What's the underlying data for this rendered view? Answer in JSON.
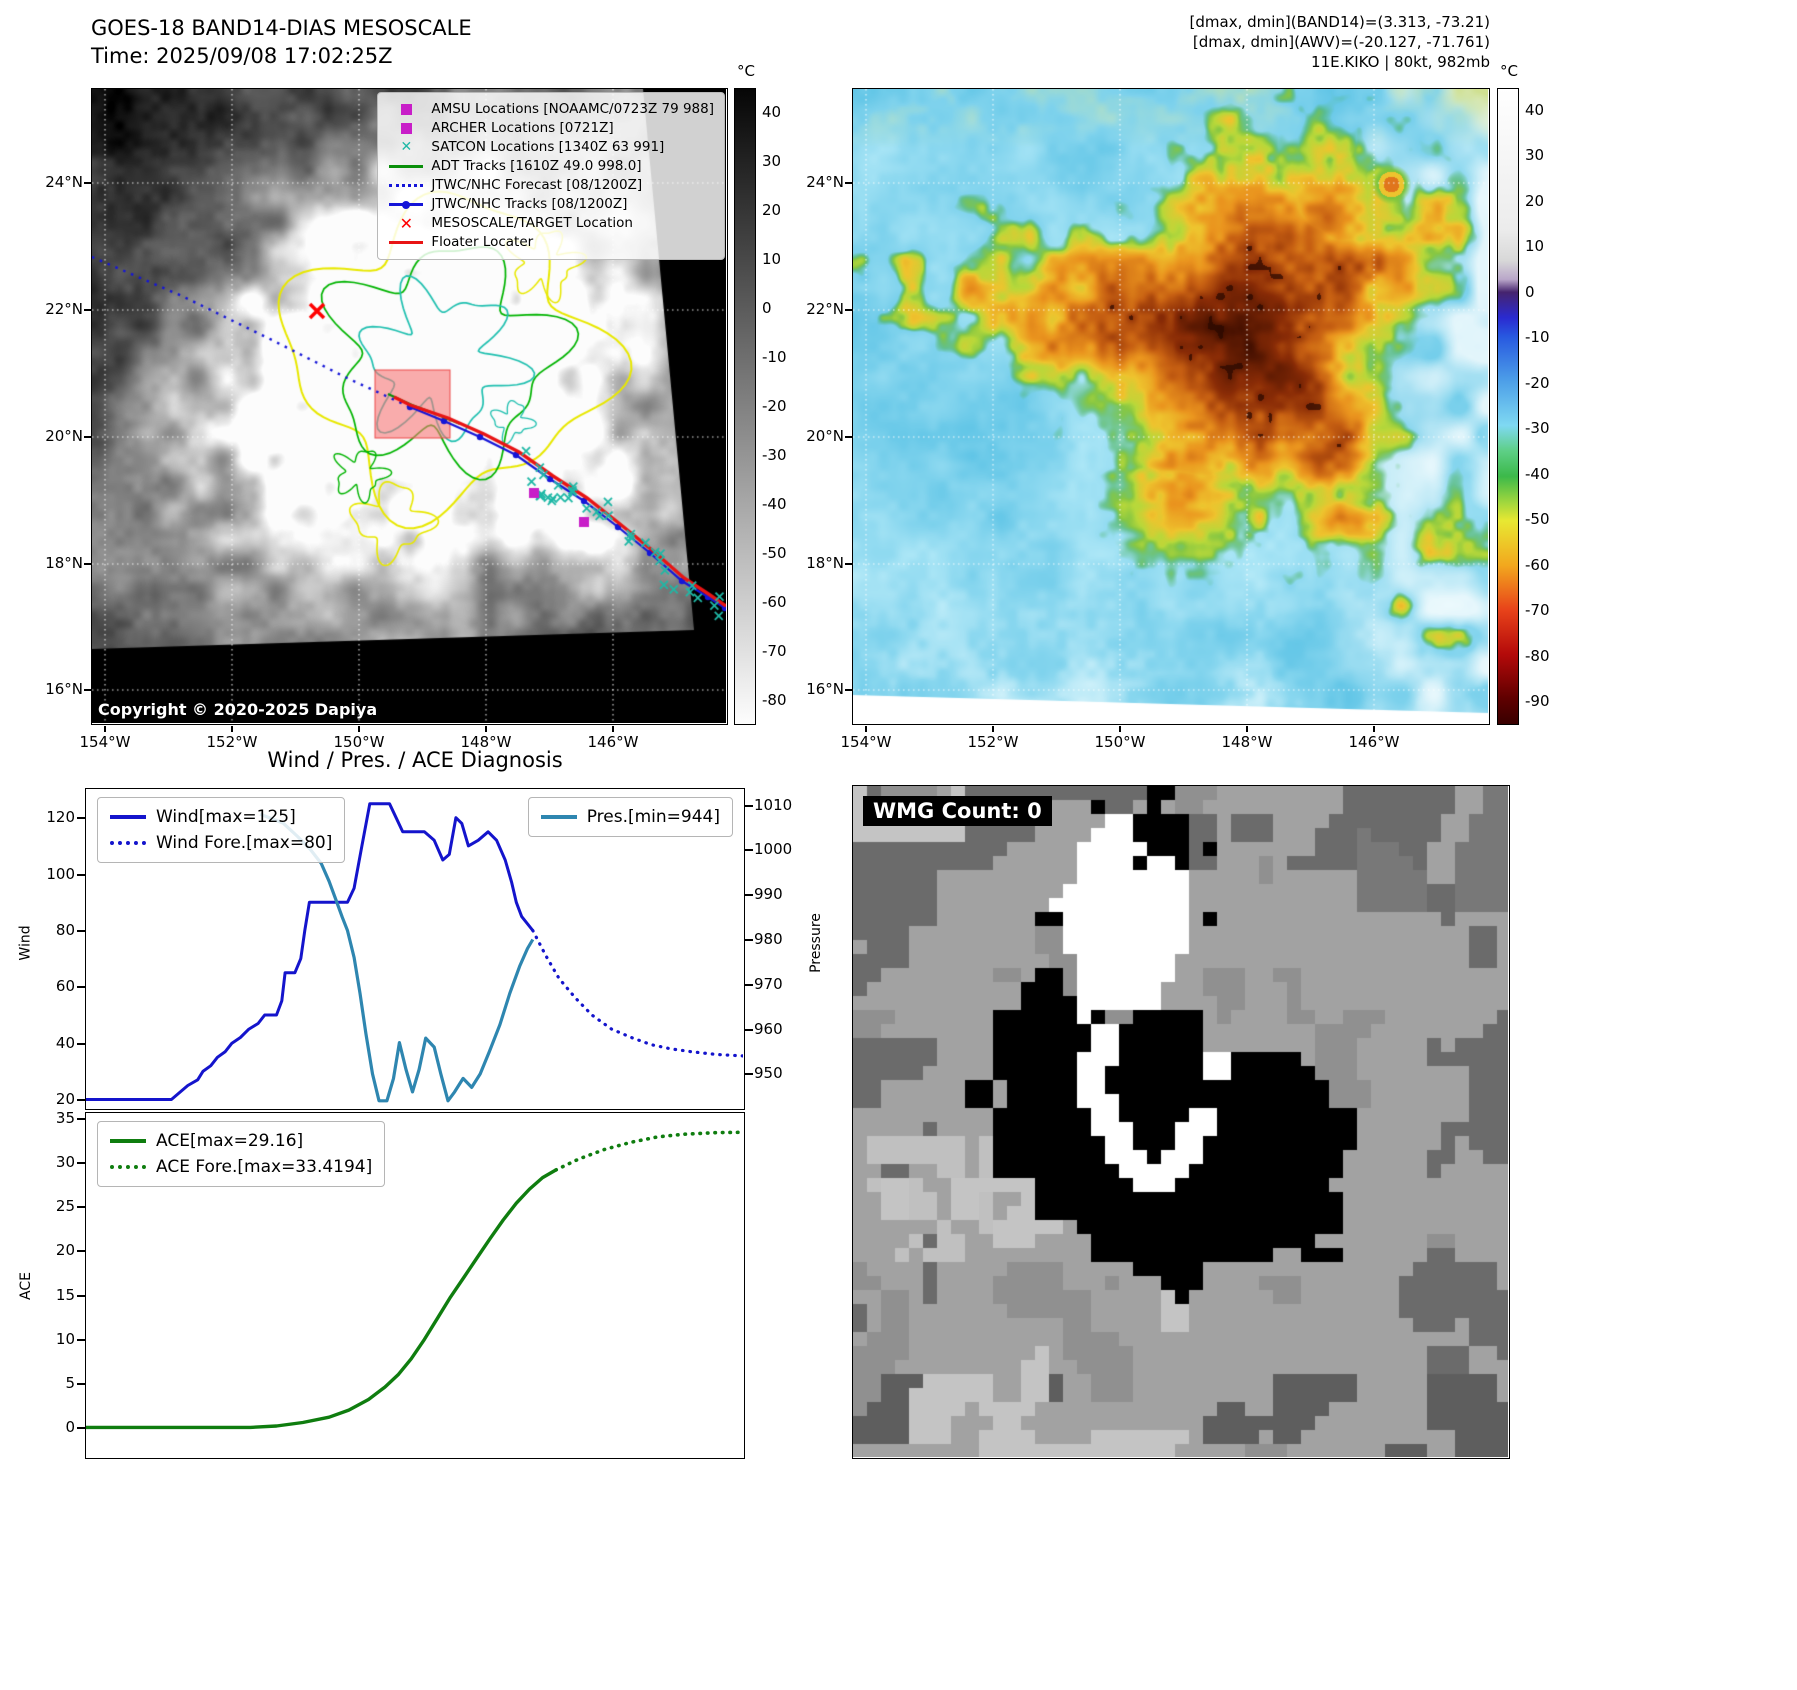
{
  "left_panel": {
    "title_line1": "GOES-18 BAND14-DIAS MESOSCALE",
    "title_line2": "Time: 2025/09/08 17:02:25Z",
    "copyright": "Copyright © 2020-2025 Dapiya",
    "lat_ticks": [
      "24°N",
      "22°N",
      "20°N",
      "18°N",
      "16°N"
    ],
    "lon_ticks": [
      "154°W",
      "152°W",
      "150°W",
      "148°W",
      "146°W"
    ],
    "colorbar": {
      "unit": "°C",
      "tick_values": [
        40,
        30,
        20,
        10,
        0,
        -10,
        -20,
        -30,
        -40,
        -50,
        -60,
        -70,
        -80
      ],
      "range": [
        45,
        -85
      ]
    },
    "overlay_colors": {
      "contour_yellow": "#e8e800",
      "contour_green": "#00b400",
      "contour_teal": "#20c0b0",
      "adt_green": "#0a8f0a",
      "track_blue": "#1515d8",
      "track_red": "#e81414",
      "satcon_teal": "#1fb8a6",
      "marker_magenta": "#c81ec8",
      "target_red": "#ff0000"
    },
    "legend": [
      {
        "marker": "square",
        "icon": "amsu-square-icon",
        "color": "#c81ec8",
        "label": "AMSU Locations [NOAAMC/0723Z 79 988]"
      },
      {
        "marker": "square",
        "icon": "archer-square-icon",
        "color": "#c81ec8",
        "label": "ARCHER Locations [0721Z]"
      },
      {
        "marker": "x",
        "icon": "satcon-x-icon",
        "color": "#1fb8a6",
        "label": "SATCON Locations [1340Z 63 991]"
      },
      {
        "marker": "line",
        "icon": "adt-track-line-icon",
        "color": "#0a8f0a",
        "label": "ADT Tracks [1610Z 49.0 998.0]"
      },
      {
        "marker": "dotted",
        "icon": "forecast-dotted-line-icon",
        "color": "#1515d8",
        "label": "JTWC/NHC Forecast [08/1200Z]"
      },
      {
        "marker": "line-dot",
        "icon": "track-line-dot-icon",
        "color": "#1515d8",
        "label": "JTWC/NHC Tracks [08/1200Z]"
      },
      {
        "marker": "x-bold",
        "icon": "target-x-icon",
        "color": "#ff0000",
        "label": "MESOSCALE/TARGET Location"
      },
      {
        "marker": "line",
        "icon": "floater-line-icon",
        "color": "#e81414",
        "label": "Floater Locater"
      }
    ]
  },
  "right_panel": {
    "annotations": [
      "[dmax, dmin](BAND14)=(3.313, -73.21)",
      "[dmax, dmin](AWV)=(-20.127, -71.761)",
      "11E.KIKO | 80kt, 982mb"
    ],
    "lat_ticks": [
      "24°N",
      "22°N",
      "20°N",
      "18°N",
      "16°N"
    ],
    "lon_ticks": [
      "154°W",
      "152°W",
      "150°W",
      "148°W",
      "146°W"
    ],
    "colorbar": {
      "unit": "°C",
      "tick_values": [
        40,
        30,
        20,
        10,
        0,
        -10,
        -20,
        -30,
        -40,
        -50,
        -60,
        -70,
        -80,
        -90
      ],
      "range": [
        45,
        -95
      ]
    }
  },
  "charts": {
    "suptitle": "Wind / Pres. / ACE Diagnosis"
  },
  "chart_data": [
    {
      "type": "line",
      "title": "Wind / Pres. / ACE Diagnosis",
      "ylabel": "Wind",
      "y2label": "Pressure",
      "xlim": [
        0,
        1
      ],
      "ylim": [
        17.0,
        130.2
      ],
      "y2lim": [
        942.4,
        1013.6
      ],
      "yticks": [
        20,
        40,
        60,
        80,
        100,
        120
      ],
      "y2ticks": [
        950,
        960,
        970,
        980,
        990,
        1000,
        1010
      ],
      "grid": false,
      "series": [
        {
          "name": "Wind[max=125]",
          "color": "#1414cc",
          "style": "solid",
          "axis": "y",
          "width": 3,
          "points": [
            [
              0,
              20
            ],
            [
              0.13,
              20
            ],
            [
              0.14,
              22
            ],
            [
              0.155,
              25
            ],
            [
              0.17,
              27
            ],
            [
              0.178,
              30
            ],
            [
              0.19,
              32
            ],
            [
              0.2,
              35
            ],
            [
              0.212,
              37
            ],
            [
              0.222,
              40
            ],
            [
              0.235,
              42
            ],
            [
              0.248,
              45
            ],
            [
              0.262,
              47
            ],
            [
              0.272,
              50
            ],
            [
              0.29,
              50
            ],
            [
              0.298,
              55
            ],
            [
              0.303,
              65
            ],
            [
              0.318,
              65
            ],
            [
              0.327,
              70
            ],
            [
              0.333,
              80
            ],
            [
              0.34,
              90
            ],
            [
              0.398,
              90
            ],
            [
              0.408,
              95
            ],
            [
              0.42,
              110
            ],
            [
              0.432,
              125
            ],
            [
              0.462,
              125
            ],
            [
              0.472,
              120
            ],
            [
              0.482,
              115
            ],
            [
              0.515,
              115
            ],
            [
              0.53,
              112
            ],
            [
              0.543,
              105
            ],
            [
              0.553,
              107
            ],
            [
              0.563,
              120
            ],
            [
              0.572,
              118
            ],
            [
              0.582,
              110
            ],
            [
              0.597,
              112
            ],
            [
              0.612,
              115
            ],
            [
              0.625,
              112
            ],
            [
              0.638,
              105
            ],
            [
              0.648,
              97
            ],
            [
              0.655,
              90
            ],
            [
              0.663,
              85
            ],
            [
              0.68,
              80
            ]
          ]
        },
        {
          "name": "Wind Fore.[max=80]",
          "color": "#1414cc",
          "style": "dotted",
          "axis": "y",
          "width": 3.2,
          "points": [
            [
              0.68,
              80
            ],
            [
              0.7,
              71
            ],
            [
              0.72,
              63
            ],
            [
              0.745,
              56
            ],
            [
              0.77,
              50
            ],
            [
              0.8,
              45
            ],
            [
              0.83,
              42
            ],
            [
              0.86,
              39.5
            ],
            [
              0.89,
              38
            ],
            [
              0.92,
              37
            ],
            [
              0.96,
              36
            ],
            [
              1,
              35.5
            ]
          ]
        },
        {
          "name": "Pres.[min=944]",
          "color": "#2e86b0",
          "style": "solid",
          "axis": "y2",
          "width": 3.2,
          "points": [
            [
              0.265,
              1008
            ],
            [
              0.3,
              1006
            ],
            [
              0.322,
              1003
            ],
            [
              0.342,
              1000
            ],
            [
              0.358,
              997
            ],
            [
              0.37,
              993
            ],
            [
              0.38,
              989
            ],
            [
              0.39,
              985
            ],
            [
              0.398,
              982
            ],
            [
              0.408,
              976
            ],
            [
              0.417,
              968
            ],
            [
              0.426,
              959
            ],
            [
              0.436,
              950
            ],
            [
              0.446,
              944
            ],
            [
              0.458,
              944
            ],
            [
              0.468,
              949
            ],
            [
              0.477,
              957
            ],
            [
              0.487,
              951
            ],
            [
              0.497,
              946
            ],
            [
              0.507,
              951
            ],
            [
              0.517,
              958
            ],
            [
              0.53,
              956
            ],
            [
              0.54,
              950
            ],
            [
              0.551,
              944
            ],
            [
              0.561,
              946
            ],
            [
              0.574,
              949
            ],
            [
              0.587,
              947
            ],
            [
              0.6,
              950
            ],
            [
              0.614,
              955
            ],
            [
              0.63,
              961
            ],
            [
              0.645,
              968
            ],
            [
              0.66,
              974
            ],
            [
              0.672,
              978
            ],
            [
              0.68,
              980
            ]
          ]
        }
      ],
      "legends": [
        {
          "pos": "tl",
          "series": [
            0,
            1
          ]
        },
        {
          "pos": "tr",
          "series": [
            2
          ]
        }
      ]
    },
    {
      "type": "line",
      "ylabel": "ACE",
      "xlim": [
        0,
        1
      ],
      "ylim": [
        -3.3,
        35.6
      ],
      "yticks": [
        0,
        5,
        10,
        15,
        20,
        25,
        30,
        35
      ],
      "grid": false,
      "series": [
        {
          "name": "ACE[max=29.16]",
          "color": "#0f7d0f",
          "style": "solid",
          "axis": "y",
          "width": 3.4,
          "points": [
            [
              0,
              0.05
            ],
            [
              0.25,
              0.05
            ],
            [
              0.29,
              0.2
            ],
            [
              0.33,
              0.6
            ],
            [
              0.37,
              1.2
            ],
            [
              0.4,
              2
            ],
            [
              0.43,
              3.2
            ],
            [
              0.455,
              4.6
            ],
            [
              0.475,
              6
            ],
            [
              0.495,
              7.8
            ],
            [
              0.515,
              10
            ],
            [
              0.535,
              12.4
            ],
            [
              0.555,
              14.8
            ],
            [
              0.575,
              17
            ],
            [
              0.595,
              19.2
            ],
            [
              0.615,
              21.4
            ],
            [
              0.635,
              23.5
            ],
            [
              0.655,
              25.4
            ],
            [
              0.675,
              27
            ],
            [
              0.695,
              28.3
            ],
            [
              0.715,
              29.16
            ]
          ]
        },
        {
          "name": "ACE Fore.[max=33.4194]",
          "color": "#0f7d0f",
          "style": "dotted",
          "axis": "y",
          "width": 3.6,
          "points": [
            [
              0.715,
              29.16
            ],
            [
              0.75,
              30.4
            ],
            [
              0.79,
              31.5
            ],
            [
              0.83,
              32.3
            ],
            [
              0.87,
              32.9
            ],
            [
              0.91,
              33.2
            ],
            [
              0.96,
              33.38
            ],
            [
              1,
              33.42
            ]
          ]
        }
      ],
      "legends": [
        {
          "pos": "tl",
          "series": [
            0,
            1
          ]
        }
      ]
    }
  ],
  "wmg_panel": {
    "label": "WMG Count: 0"
  }
}
